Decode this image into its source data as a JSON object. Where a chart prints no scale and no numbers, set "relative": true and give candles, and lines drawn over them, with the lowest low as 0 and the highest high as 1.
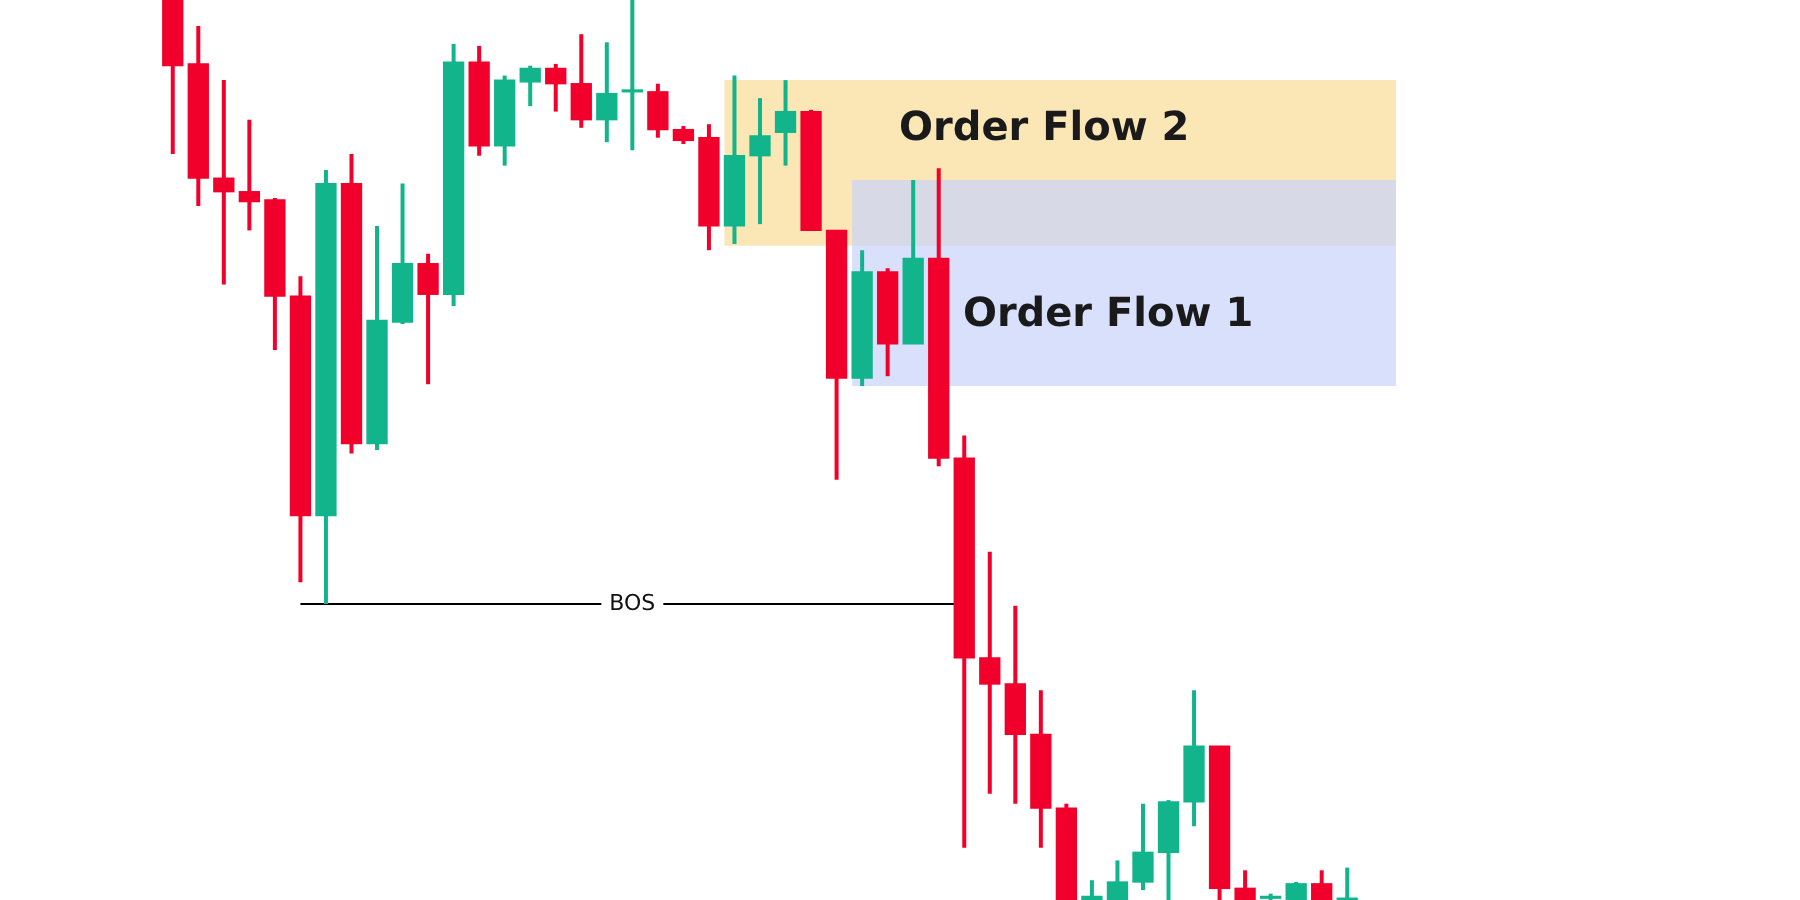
{
  "chart_data": {
    "type": "candlestick",
    "relative": true,
    "categories": [
      null,
      null,
      null,
      null,
      null,
      null,
      null,
      null,
      null,
      null,
      null,
      null,
      null,
      null,
      null,
      null,
      null,
      null,
      null,
      null,
      null,
      null,
      null,
      null,
      null,
      null,
      null,
      null,
      null,
      null,
      null,
      null,
      null,
      null,
      null,
      null,
      null,
      null,
      null,
      null,
      null,
      null,
      null,
      null,
      null,
      null,
      null
    ],
    "ohlc": [
      [
        1,
        1,
        0.829,
        0.927
      ],
      [
        0.929,
        0.971,
        0.771,
        0.802
      ],
      [
        0.802,
        0.911,
        0.684,
        0.787
      ],
      [
        0.787,
        0.867,
        0.744,
        0.776
      ],
      [
        0.778,
        0.78,
        0.611,
        0.671
      ],
      [
        0.671,
        0.693,
        0.353,
        0.427
      ],
      [
        0.427,
        0.811,
        0.329,
        0.796
      ],
      [
        0.796,
        0.829,
        0.496,
        0.507
      ],
      [
        0.507,
        0.749,
        0.5,
        0.644
      ],
      [
        0.642,
        0.796,
        0.64,
        0.707
      ],
      [
        0.707,
        0.718,
        0.573,
        0.673
      ],
      [
        0.673,
        0.951,
        0.66,
        0.931
      ],
      [
        0.931,
        0.949,
        0.827,
        0.838
      ],
      [
        0.838,
        0.916,
        0.816,
        0.911
      ],
      [
        0.909,
        0.927,
        0.882,
        0.924
      ],
      [
        0.924,
        0.929,
        0.876,
        0.907
      ],
      [
        0.907,
        0.962,
        0.858,
        0.867
      ],
      [
        0.867,
        0.953,
        0.842,
        0.896
      ],
      [
        0.898,
        1,
        0.833,
        0.9
      ],
      [
        0.898,
        0.907,
        0.847,
        0.856
      ],
      [
        0.856,
        0.86,
        0.84,
        0.844
      ],
      [
        0.847,
        0.862,
        0.722,
        0.749
      ],
      [
        0.749,
        0.916,
        0.729,
        0.827
      ],
      [
        0.827,
        0.891,
        0.751,
        0.849
      ],
      [
        0.853,
        0.911,
        0.816,
        0.876
      ],
      [
        0.876,
        0.878,
        0.744,
        0.744
      ],
      [
        0.744,
        0.744,
        0.467,
        0.58
      ],
      [
        0.58,
        0.722,
        0.571,
        0.698
      ],
      [
        0.698,
        0.702,
        0.582,
        0.618
      ],
      [
        0.618,
        0.8,
        0.618,
        0.713
      ],
      [
        0.713,
        0.813,
        0.482,
        0.491
      ],
      [
        0.491,
        0.516,
        0.058,
        0.269
      ],
      [
        0.269,
        0.387,
        0.118,
        0.24
      ],
      [
        0.24,
        0.327,
        0.107,
        0.184
      ],
      [
        0.184,
        0.233,
        0.058,
        0.102
      ],
      [
        0.102,
        0.107,
        0,
        0
      ],
      [
        0,
        0.022,
        0,
        0.004
      ],
      [
        0,
        0.044,
        0,
        0.02
      ],
      [
        0.02,
        0.107,
        0.011,
        0.053
      ],
      [
        0.053,
        0.111,
        0,
        0.109
      ],
      [
        0.109,
        0.233,
        0.082,
        0.171
      ],
      [
        0.171,
        0.171,
        0,
        0.013
      ],
      [
        0.013,
        0.033,
        0,
        0
      ],
      [
        0.002,
        0.007,
        0,
        0.004
      ],
      [
        0,
        0.02,
        0,
        0.018
      ],
      [
        0.018,
        0.033,
        0,
        0
      ],
      [
        0,
        0.036,
        0,
        0.002
      ]
    ],
    "colors": [
      "#f0002a",
      "#f0002a",
      "#f0002a",
      "#f0002a",
      "#f0002a",
      "#f0002a",
      "#12b48c",
      "#f0002a",
      "#12b48c",
      "#12b48c",
      "#f0002a",
      "#12b48c",
      "#f0002a",
      "#12b48c",
      "#12b48c",
      "#f0002a",
      "#f0002a",
      "#12b48c",
      "#12b48c",
      "#f0002a",
      "#f0002a",
      "#f0002a",
      "#12b48c",
      "#12b48c",
      "#12b48c",
      "#f0002a",
      "#f0002a",
      "#12b48c",
      "#f0002a",
      "#12b48c",
      "#f0002a",
      "#f0002a",
      "#f0002a",
      "#f0002a",
      "#f0002a",
      "#f0002a",
      "#12b48c",
      "#12b48c",
      "#12b48c",
      "#12b48c",
      "#12b48c",
      "#f0002a",
      "#f0002a",
      "#12b48c",
      "#12b48c",
      "#f0002a",
      "#12b48c"
    ],
    "bands": [
      {
        "axis": "y",
        "from": 0.727,
        "to": 0.911,
        "label": "Order Flow 2",
        "color": "#f9dc96"
      },
      {
        "axis": "y",
        "from": 0.571,
        "to": 0.8,
        "label": "Order Flow 1",
        "color": "#c8d3fb"
      }
    ],
    "ref_lines": [
      {
        "axis": "y",
        "value": 0.329,
        "label": "BOS",
        "color": "#000000"
      }
    ],
    "legend": false
  }
}
